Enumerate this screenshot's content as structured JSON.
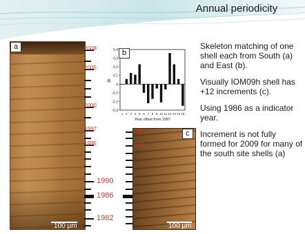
{
  "slide": {
    "title": "Annual periodicity"
  },
  "panel_a": {
    "label": "a",
    "scale_bar": "100 µm",
    "years_small": [
      "2008",
      "2005",
      "2000",
      "1997",
      "1995"
    ],
    "years_big": [
      "1990",
      "1986",
      "1982"
    ]
  },
  "panel_b": {
    "label": "b"
  },
  "panel_c": {
    "label": "c",
    "scale_bar": "100 µm",
    "years_small": [
      "1997",
      "1995"
    ]
  },
  "chart_data": {
    "type": "bar",
    "title": "",
    "xlabel": "Year offset from 1997",
    "ylabel": "R",
    "x": [
      1,
      2,
      3,
      4,
      5,
      6,
      7,
      8,
      9,
      10,
      11,
      12,
      13,
      14,
      15
    ],
    "values": [
      0.0,
      0.06,
      0.13,
      0.11,
      0.23,
      -0.1,
      -0.22,
      -0.17,
      -0.05,
      -0.21,
      -0.06,
      0.36,
      0.23,
      0.06,
      -0.25
    ],
    "ylim": [
      -0.3,
      0.4
    ],
    "yticks": [
      "0.4",
      "0.3",
      "0.2",
      "0.1",
      "0",
      "-0.1",
      "-0.2",
      "-0.3"
    ],
    "xticks": [
      "1",
      "2",
      "3",
      "4",
      "5",
      "6",
      "7",
      "8",
      "9",
      "10",
      "11",
      "12",
      "13",
      "14",
      "15"
    ],
    "bar_color": "#111111"
  },
  "text": {
    "p1": "Skeleton matching of one shell each from South (a) and East (b).",
    "p2": "Visually IOM09h shell has +12 increments (c).",
    "p3": "Using 1986 as a indicator year.",
    "p4": "Increment is not fully formed for 2009 for many of the south site shells (a)"
  },
  "colors": {
    "year_label": "#c0392b",
    "header_teal": "#7fb8c0"
  }
}
